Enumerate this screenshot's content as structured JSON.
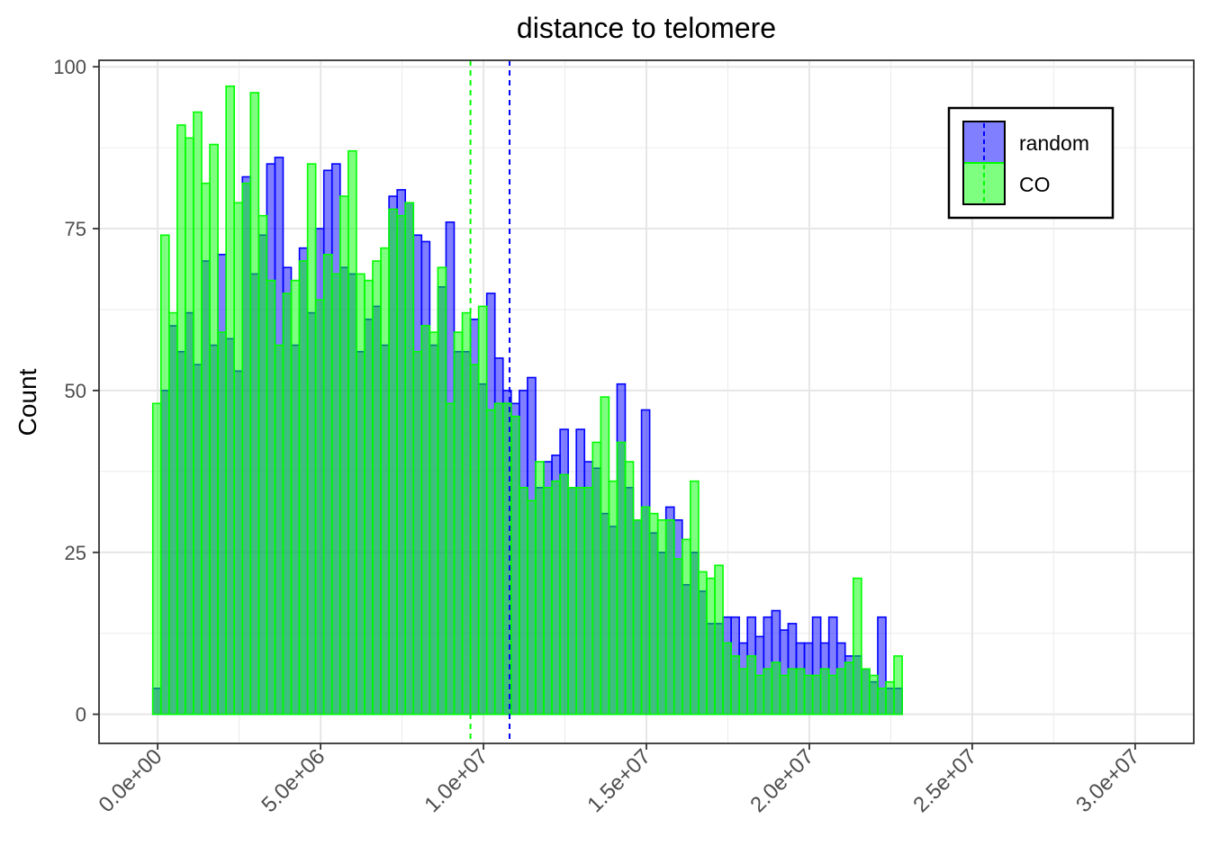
{
  "chart_data": {
    "type": "histogram",
    "title": "distance to telomere",
    "xlabel": "",
    "ylabel": "Count",
    "xlim": [
      -1800000,
      31800000
    ],
    "ylim": [
      -4.5,
      101
    ],
    "x_ticks": [
      0,
      5000000,
      10000000,
      15000000,
      20000000,
      25000000,
      30000000
    ],
    "x_tick_labels": [
      "0.0e+00",
      "5.0e+06",
      "1.0e+07",
      "1.5e+07",
      "2.0e+07",
      "2.5e+07",
      "3.0e+07"
    ],
    "y_ticks": [
      0,
      25,
      50,
      75,
      100
    ],
    "y_tick_labels": [
      "0",
      "25",
      "50",
      "75",
      "100"
    ],
    "grid": true,
    "legend_position": "top-right",
    "bin_start": -150000,
    "bin_width": 250000,
    "series": [
      {
        "name": "random",
        "fill": "#0000ff",
        "stroke": "#0000ff",
        "mean": 10800000,
        "values": [
          4,
          50,
          60,
          56,
          62,
          54,
          70,
          57,
          71,
          58,
          53,
          83,
          68,
          74,
          85,
          86,
          69,
          57,
          72,
          62,
          75,
          84,
          85,
          69,
          68,
          56,
          61,
          63,
          57,
          80,
          81,
          79,
          74,
          73,
          57,
          66,
          76,
          56,
          56,
          61,
          51,
          65,
          55,
          50,
          48,
          50,
          52,
          35,
          39,
          40,
          44,
          35,
          44,
          39,
          38,
          31,
          29,
          51,
          35,
          30,
          47,
          28,
          25,
          32,
          30,
          20,
          25,
          19,
          14,
          14,
          15,
          15,
          11,
          15,
          12,
          15,
          16,
          13,
          14,
          11,
          11,
          15,
          11,
          15,
          11,
          9,
          9,
          7,
          5,
          15,
          4,
          4
        ]
      },
      {
        "name": "CO",
        "fill": "#00ff00",
        "stroke": "#00ff00",
        "mean": 9600000,
        "values": [
          48,
          74,
          62,
          91,
          89,
          93,
          82,
          88,
          59,
          97,
          79,
          82,
          96,
          77,
          67,
          57,
          65,
          67,
          70,
          85,
          64,
          71,
          68,
          80,
          87,
          68,
          67,
          70,
          72,
          78,
          77,
          79,
          56,
          60,
          59,
          69,
          48,
          59,
          62,
          54,
          63,
          47,
          48,
          48,
          46,
          35,
          33,
          39,
          35,
          36,
          37,
          35,
          35,
          35,
          42,
          49,
          36,
          42,
          39,
          30,
          32,
          31,
          30,
          30,
          24,
          27,
          36,
          22,
          21,
          23,
          11,
          9,
          7,
          9,
          6,
          7,
          8,
          6,
          7,
          7,
          6,
          6,
          7,
          6,
          7,
          8,
          21,
          7,
          6,
          4,
          5,
          9
        ]
      }
    ]
  }
}
